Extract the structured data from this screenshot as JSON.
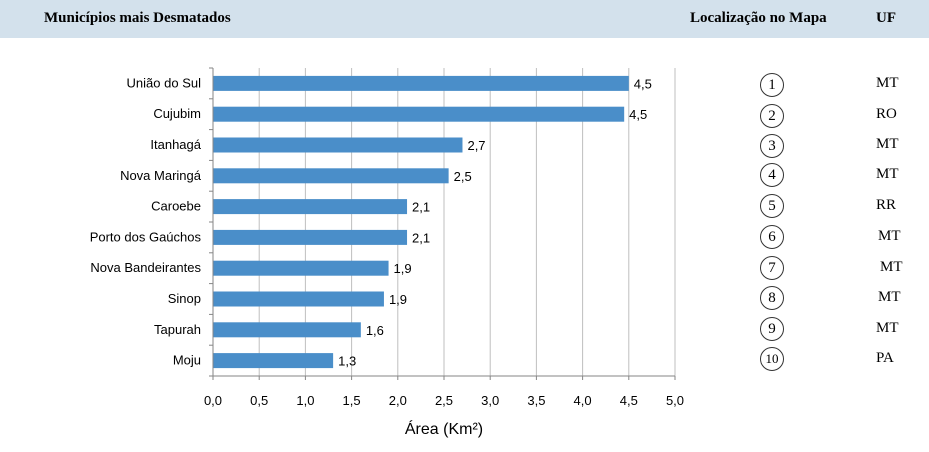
{
  "header": {
    "left_title": "Municípios mais Desmatados",
    "location_title": "Localização no Mapa",
    "uf_title": "UF",
    "background": "#d3e1ec"
  },
  "chart_data": {
    "type": "bar",
    "orientation": "horizontal",
    "categories": [
      "União do Sul",
      "Cujubim",
      "Itanhagá",
      "Nova Maringá",
      "Caroebe",
      "Porto dos Gaúchos",
      "Nova Bandeirantes",
      "Sinop",
      "Tapurah",
      "Moju"
    ],
    "values": [
      4.5,
      4.45,
      2.7,
      2.55,
      2.1,
      2.1,
      1.9,
      1.85,
      1.6,
      1.3
    ],
    "data_labels": [
      "4,5",
      "4,5",
      "2,7",
      "2,5",
      "2,1",
      "2,1",
      "1,9",
      "1,9",
      "1,6",
      "1,3"
    ],
    "xlabel": "Área (Km²)",
    "xlim": [
      0,
      5
    ],
    "xticks": [
      "0,0",
      "0,5",
      "1,0",
      "1,5",
      "2,0",
      "2,5",
      "3,0",
      "3,5",
      "4,0",
      "4,5",
      "5,0"
    ],
    "grid": true,
    "bar_color": "#4a8ec9"
  },
  "locations": [
    {
      "number": "1",
      "uf": "MT"
    },
    {
      "number": "2",
      "uf": "RO"
    },
    {
      "number": "3",
      "uf": "MT"
    },
    {
      "number": "4",
      "uf": "MT"
    },
    {
      "number": "5",
      "uf": "RR"
    },
    {
      "number": "6",
      "uf": "MT"
    },
    {
      "number": "7",
      "uf": "MT"
    },
    {
      "number": "8",
      "uf": "MT"
    },
    {
      "number": "9",
      "uf": "MT"
    },
    {
      "number": "10",
      "uf": "PA"
    }
  ]
}
